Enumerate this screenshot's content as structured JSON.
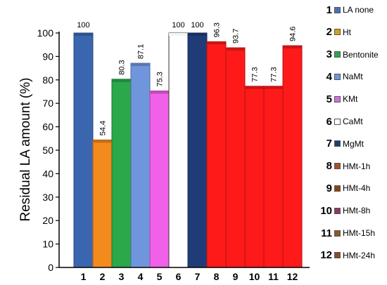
{
  "chart_data": {
    "type": "bar",
    "title": "",
    "xlabel": "",
    "ylabel": "Residual LA amount (%)",
    "ylim": [
      0,
      100
    ],
    "yticks": [
      0,
      10,
      20,
      30,
      40,
      50,
      60,
      70,
      80,
      90,
      100
    ],
    "grid": false,
    "legend_position": "right",
    "categories": [
      "1",
      "2",
      "3",
      "4",
      "5",
      "6",
      "7",
      "8",
      "9",
      "10",
      "11",
      "12"
    ],
    "values": [
      100,
      54.4,
      80.3,
      87.1,
      75.3,
      100,
      100,
      96.3,
      93.7,
      77.3,
      77.3,
      94.6
    ],
    "data_labels": [
      "100",
      "54.4",
      "80.3",
      "87.1",
      "75.3",
      "100",
      "100",
      "96.3",
      "93.7",
      "77.3",
      "77.3",
      "94.6"
    ],
    "colors": [
      "#3a66b0",
      "#f28a1c",
      "#2aa84a",
      "#6f96dc",
      "#f060e8",
      "#ffffff",
      "#1f3c78",
      "#ff1a1a",
      "#ff1a1a",
      "#ff1a1a",
      "#ff1a1a",
      "#ff1a1a"
    ],
    "legend": [
      {
        "num": "1",
        "label": "LA none",
        "color": "#4a6fb5"
      },
      {
        "num": "2",
        "label": "Ht",
        "color": "#d4a017"
      },
      {
        "num": "3",
        "label": "Bentonite",
        "color": "#2aa84a"
      },
      {
        "num": "4",
        "label": "NaMt",
        "color": "#6f96dc"
      },
      {
        "num": "5",
        "label": "KMt",
        "color": "#d070e0"
      },
      {
        "num": "6",
        "label": "CaMt",
        "color": "#ffffff"
      },
      {
        "num": "7",
        "label": "MgMt",
        "color": "#1f3c78"
      },
      {
        "num": "8",
        "label": "HMt-1h",
        "color": "#a0522d"
      },
      {
        "num": "9",
        "label": "HMt-4h",
        "color": "#8b4513"
      },
      {
        "num": "10",
        "label": "HMt-8h",
        "color": "#8b3a62"
      },
      {
        "num": "11",
        "label": "HMt-15h",
        "color": "#8b5a2b"
      },
      {
        "num": "12",
        "label": "HMt-24h",
        "color": "#8b4a2b"
      }
    ]
  }
}
